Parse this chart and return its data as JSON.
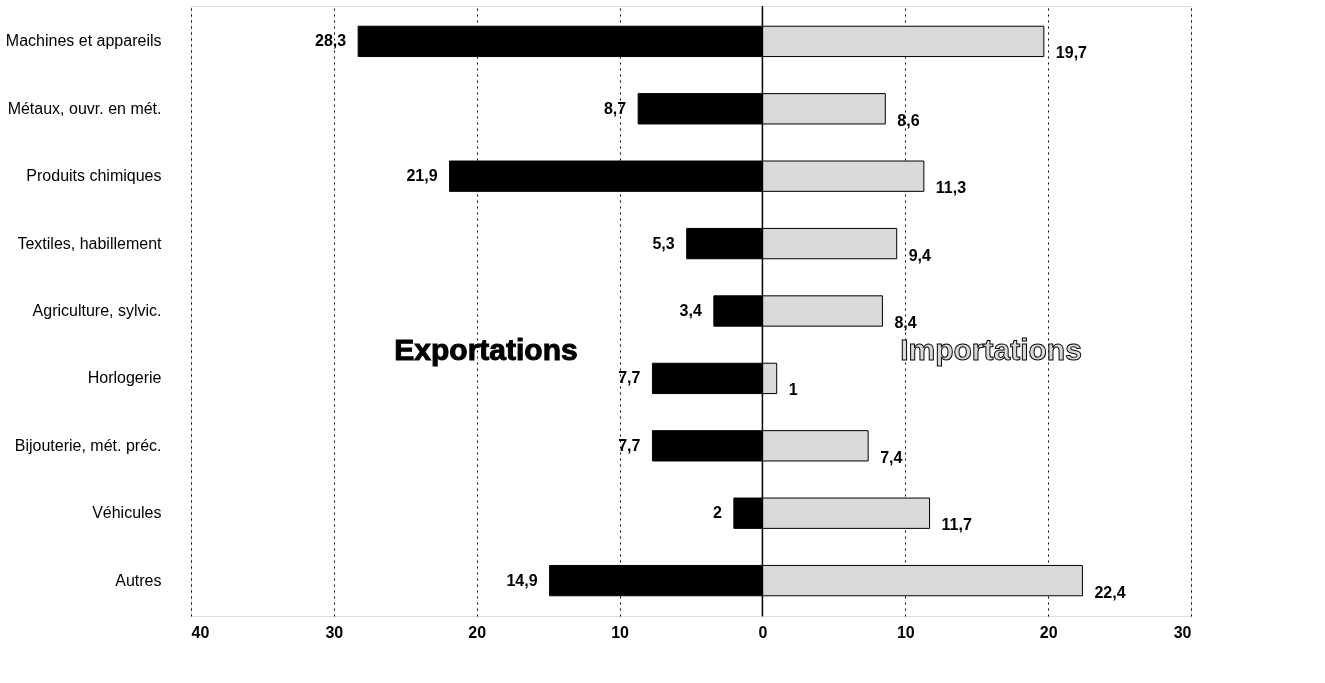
{
  "chart_data": {
    "type": "bar",
    "orientation": "horizontal",
    "categories": [
      "Machines et appareils",
      "Métaux, ouvr. en mét.",
      "Produits chimiques",
      "Textiles, habillement",
      "Agriculture, sylvic.",
      "Horlogerie",
      "Bijouterie, mét. préc.",
      "Véhicules",
      "Autres"
    ],
    "series": [
      {
        "name": "Exportations",
        "color": "#000000",
        "values": [
          28.3,
          8.7,
          21.9,
          5.3,
          3.4,
          7.7,
          7.7,
          2,
          14.9
        ],
        "base": [
          -28.3,
          -8.7,
          -21.9,
          -5.3,
          -3.4,
          -7.7,
          -7.7,
          -2,
          -14.9
        ]
      },
      {
        "name": "Importations",
        "color": "#d9d9d9",
        "values": [
          19.7,
          8.6,
          11.3,
          9.4,
          8.4,
          1,
          7.4,
          11.7,
          22.4
        ]
      }
    ],
    "value_labels": [
      [
        "28,3",
        "8,7",
        "21,9",
        "5,3",
        "3,4",
        "7,7",
        "7,7",
        "2",
        "14,9"
      ],
      [
        "19,7",
        "8,6",
        "11,3",
        "9,4",
        "8,4",
        "1",
        "7,4",
        "11,7",
        "22,4"
      ]
    ],
    "xlim": [
      -40,
      30
    ],
    "xticks": [
      {
        "value": -40,
        "label": "40"
      },
      {
        "value": -30,
        "label": "30"
      },
      {
        "value": -20,
        "label": "20"
      },
      {
        "value": -10,
        "label": "10"
      },
      0,
      10,
      20,
      30
    ],
    "grid": "x",
    "legend": false,
    "ref_lines": [
      {
        "axis": "x",
        "value": 0
      }
    ]
  }
}
